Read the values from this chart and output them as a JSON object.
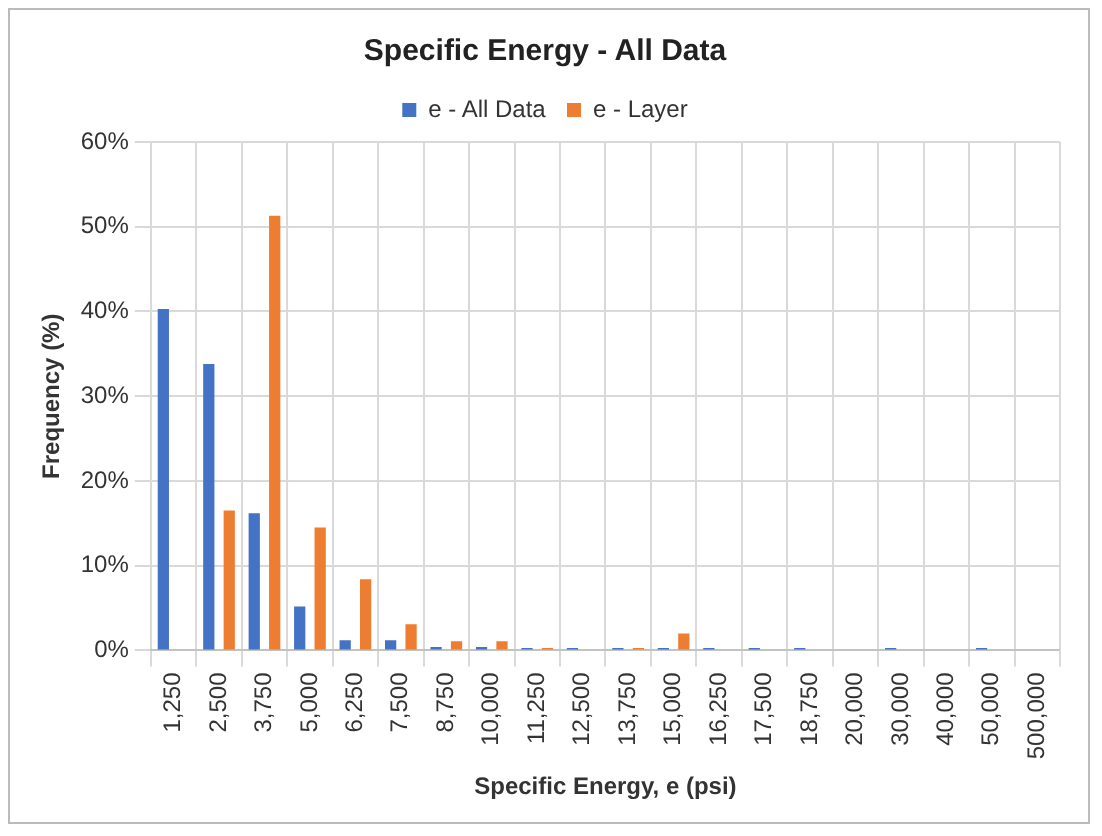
{
  "chart_data": {
    "type": "bar",
    "title": "Specific Energy - All Data",
    "xlabel": "Specific Energy, e (psi)",
    "ylabel": "Frequency (%)",
    "categories": [
      "1,250",
      "2,500",
      "3,750",
      "5,000",
      "6,250",
      "7,500",
      "8,750",
      "10,000",
      "11,250",
      "12,500",
      "13,750",
      "15,000",
      "16,250",
      "17,500",
      "18,750",
      "20,000",
      "30,000",
      "40,000",
      "50,000",
      "500,000"
    ],
    "series": [
      {
        "name": "e - All Data",
        "color": "#4472c4",
        "values": [
          40.3,
          33.8,
          16.2,
          5.2,
          1.2,
          1.2,
          0.4,
          0.4,
          0.3,
          0.3,
          0.3,
          0.3,
          0.3,
          0.3,
          0.3,
          0,
          0.3,
          0,
          0.3,
          0
        ]
      },
      {
        "name": "e - Layer",
        "color": "#ed7d31",
        "values": [
          0,
          16.5,
          51.3,
          14.5,
          8.4,
          3.1,
          1.1,
          1.1,
          0.3,
          0,
          0.3,
          2.0,
          0,
          0,
          0,
          0,
          0,
          0,
          0,
          0
        ]
      }
    ],
    "ylim": [
      0,
      60
    ],
    "yticks": [
      {
        "value": 0,
        "label": "0%"
      },
      {
        "value": 10,
        "label": "10%"
      },
      {
        "value": 20,
        "label": "20%"
      },
      {
        "value": 30,
        "label": "30%"
      },
      {
        "value": 40,
        "label": "40%"
      },
      {
        "value": 50,
        "label": "50%"
      },
      {
        "value": 60,
        "label": "60%"
      }
    ],
    "grid": true,
    "legend": "top"
  }
}
